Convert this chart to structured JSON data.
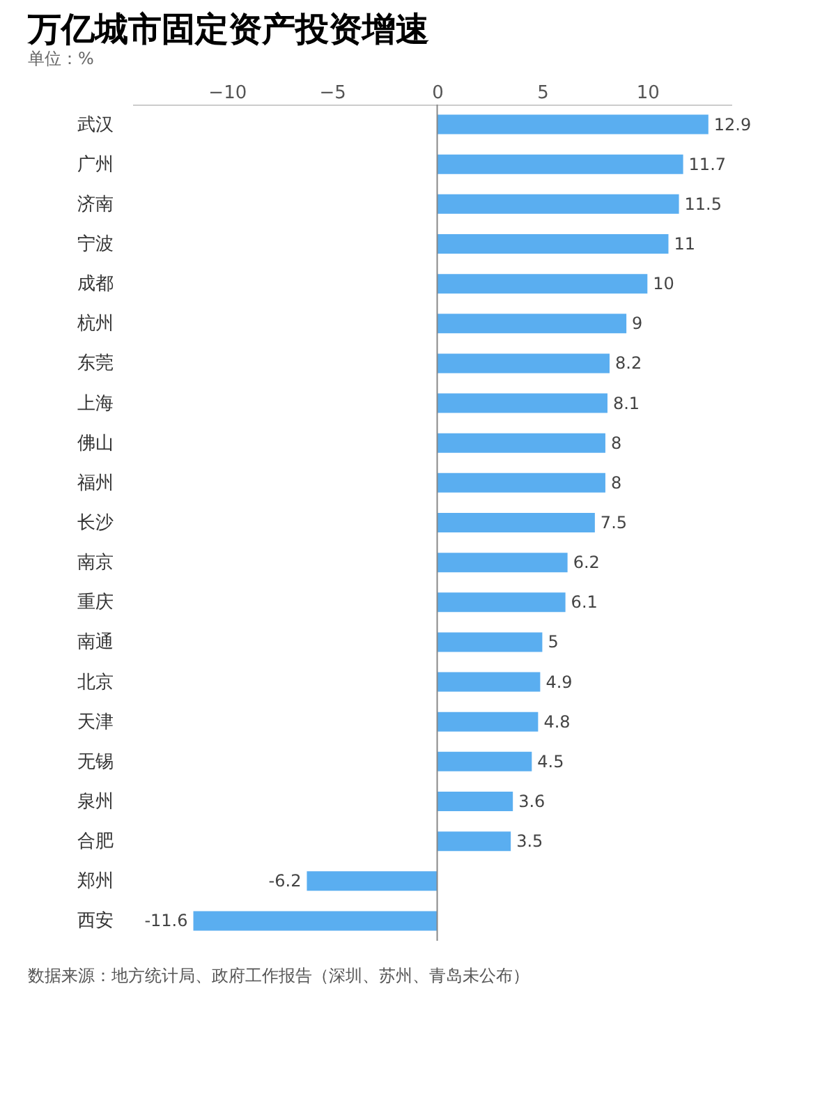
{
  "chart_data": {
    "type": "bar",
    "orientation": "horizontal",
    "title": "万亿城市固定资产投资增速",
    "subtitle": "单位：%",
    "categories": [
      "武汉",
      "广州",
      "济南",
      "宁波",
      "成都",
      "杭州",
      "东莞",
      "上海",
      "佛山",
      "福州",
      "长沙",
      "南京",
      "重庆",
      "南通",
      "北京",
      "天津",
      "无锡",
      "泉州",
      "合肥",
      "郑州",
      "西安"
    ],
    "values": [
      12.9,
      11.7,
      11.5,
      11,
      10,
      9,
      8.2,
      8.1,
      8,
      8,
      7.5,
      6.2,
      6.1,
      5,
      4.9,
      4.8,
      4.5,
      3.6,
      3.5,
      -6.2,
      -11.6
    ],
    "color": "#5aaef0",
    "xlim": [
      -14.5,
      14
    ],
    "xticks": [
      -10,
      -5,
      0,
      5,
      10
    ],
    "grid": false,
    "ref_lines": [
      {
        "axis": "x",
        "value": 0,
        "color": "#888888"
      }
    ],
    "data_labels": true,
    "annotations": [
      "数据来源：地方统计局、政府工作报告（深圳、苏州、青岛未公布）"
    ]
  }
}
